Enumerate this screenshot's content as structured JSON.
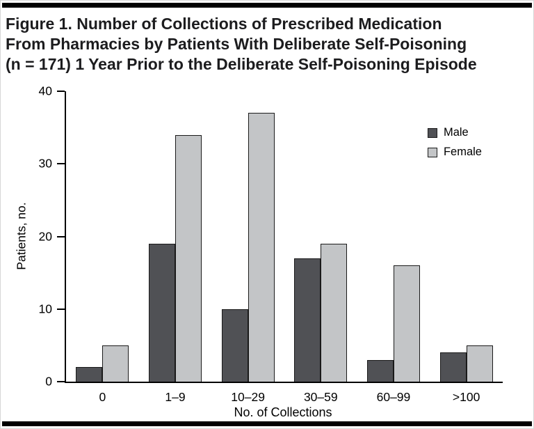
{
  "title": {
    "lines": [
      "Figure 1. Number of Collections of Prescribed Medication",
      "From Pharmacies by Patients With Deliberate Self-Poisoning",
      "(n = 171) 1 Year Prior to the Deliberate Self-Poisoning Episode"
    ]
  },
  "chart_data": {
    "type": "bar",
    "title": "Figure 1. Number of Collections of Prescribed Medication From Pharmacies by Patients With Deliberate Self-Poisoning (n = 171) 1 Year Prior to the Deliberate Self-Poisoning Episode",
    "categories": [
      "0",
      "1–9",
      "10–29",
      "30–59",
      "60–99",
      ">100"
    ],
    "series": [
      {
        "name": "Male",
        "color": "#505155",
        "values": [
          2,
          19,
          10,
          17,
          3,
          4
        ]
      },
      {
        "name": "Female",
        "color": "#c3c5c7",
        "values": [
          5,
          34,
          37,
          19,
          16,
          5
        ]
      }
    ],
    "xlabel": "No. of Collections",
    "ylabel": "Patients, no.",
    "ylim": [
      0,
      40
    ],
    "yticks": [
      0,
      10,
      20,
      30,
      40
    ],
    "legend_position": "top-right",
    "grid": false,
    "axis_color": "#000000",
    "bar_outline_color": "#1a1a1a"
  }
}
